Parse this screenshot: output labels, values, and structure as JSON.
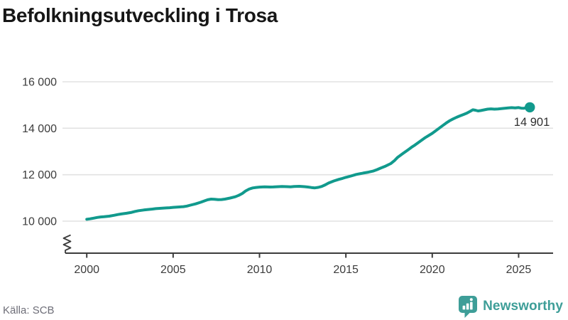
{
  "title": "Befolkningsutveckling i Trosa",
  "source": "Källa: SCB",
  "branding": {
    "name": "Newsworthy",
    "icon": "bar-chart-marker-icon",
    "color": "#3e9e98"
  },
  "colors": {
    "line": "#119a8d",
    "axis": "#3c3c3c",
    "grid": "#e2e2e2",
    "title": "#161616",
    "annotation": "#2f2f2f",
    "source_text": "#6e6e78"
  },
  "chart_data": {
    "type": "line",
    "title": "Befolkningsutveckling i Trosa",
    "xlabel": "",
    "ylabel": "",
    "grid": "horizontal-only",
    "legend": "none",
    "y_axis_broken": true,
    "x_ticks": [
      2000,
      2005,
      2010,
      2015,
      2020,
      2025
    ],
    "x_tick_labels": [
      "2000",
      "2005",
      "2010",
      "2015",
      "2020",
      "2025"
    ],
    "y_ticks": [
      10000,
      12000,
      14000,
      16000
    ],
    "y_tick_labels": [
      "10 000",
      "12 000",
      "14 000",
      "16 000"
    ],
    "xlim": [
      2000,
      2025.65
    ],
    "ylim": [
      10000,
      16000
    ],
    "end_annotation": {
      "label": "14 901",
      "value": 14901
    },
    "series": [
      {
        "name": "Befolkning",
        "color": "#119a8d",
        "points": [
          [
            2000.0,
            10080
          ],
          [
            2000.2,
            10100
          ],
          [
            2000.4,
            10130
          ],
          [
            2000.6,
            10160
          ],
          [
            2000.8,
            10180
          ],
          [
            2001.0,
            10190
          ],
          [
            2001.3,
            10215
          ],
          [
            2001.6,
            10255
          ],
          [
            2001.8,
            10285
          ],
          [
            2002.0,
            10310
          ],
          [
            2002.3,
            10340
          ],
          [
            2002.6,
            10380
          ],
          [
            2002.8,
            10420
          ],
          [
            2003.0,
            10450
          ],
          [
            2003.3,
            10480
          ],
          [
            2003.6,
            10505
          ],
          [
            2003.8,
            10520
          ],
          [
            2004.0,
            10540
          ],
          [
            2004.3,
            10555
          ],
          [
            2004.6,
            10570
          ],
          [
            2004.8,
            10580
          ],
          [
            2005.0,
            10595
          ],
          [
            2005.3,
            10608
          ],
          [
            2005.6,
            10625
          ],
          [
            2005.8,
            10650
          ],
          [
            2006.0,
            10690
          ],
          [
            2006.3,
            10745
          ],
          [
            2006.6,
            10815
          ],
          [
            2006.8,
            10870
          ],
          [
            2007.0,
            10920
          ],
          [
            2007.2,
            10950
          ],
          [
            2007.4,
            10940
          ],
          [
            2007.6,
            10925
          ],
          [
            2007.8,
            10932
          ],
          [
            2008.0,
            10948
          ],
          [
            2008.3,
            10995
          ],
          [
            2008.6,
            11050
          ],
          [
            2008.8,
            11110
          ],
          [
            2009.0,
            11190
          ],
          [
            2009.2,
            11300
          ],
          [
            2009.4,
            11380
          ],
          [
            2009.6,
            11430
          ],
          [
            2009.8,
            11450
          ],
          [
            2010.0,
            11465
          ],
          [
            2010.3,
            11480
          ],
          [
            2010.6,
            11468
          ],
          [
            2010.8,
            11472
          ],
          [
            2011.0,
            11482
          ],
          [
            2011.3,
            11492
          ],
          [
            2011.6,
            11486
          ],
          [
            2011.8,
            11480
          ],
          [
            2012.0,
            11490
          ],
          [
            2012.3,
            11500
          ],
          [
            2012.6,
            11484
          ],
          [
            2012.8,
            11470
          ],
          [
            2013.0,
            11448
          ],
          [
            2013.2,
            11432
          ],
          [
            2013.4,
            11455
          ],
          [
            2013.6,
            11495
          ],
          [
            2013.8,
            11560
          ],
          [
            2014.0,
            11640
          ],
          [
            2014.3,
            11730
          ],
          [
            2014.6,
            11800
          ],
          [
            2014.8,
            11840
          ],
          [
            2015.0,
            11885
          ],
          [
            2015.3,
            11945
          ],
          [
            2015.6,
            12010
          ],
          [
            2015.8,
            12040
          ],
          [
            2016.0,
            12070
          ],
          [
            2016.3,
            12110
          ],
          [
            2016.6,
            12160
          ],
          [
            2016.8,
            12215
          ],
          [
            2017.0,
            12280
          ],
          [
            2017.3,
            12370
          ],
          [
            2017.6,
            12480
          ],
          [
            2017.8,
            12600
          ],
          [
            2018.0,
            12750
          ],
          [
            2018.3,
            12910
          ],
          [
            2018.6,
            13070
          ],
          [
            2018.8,
            13180
          ],
          [
            2019.0,
            13280
          ],
          [
            2019.3,
            13440
          ],
          [
            2019.6,
            13600
          ],
          [
            2019.8,
            13690
          ],
          [
            2020.0,
            13780
          ],
          [
            2020.2,
            13890
          ],
          [
            2020.4,
            14000
          ],
          [
            2020.6,
            14110
          ],
          [
            2020.8,
            14220
          ],
          [
            2021.0,
            14320
          ],
          [
            2021.2,
            14400
          ],
          [
            2021.4,
            14470
          ],
          [
            2021.6,
            14530
          ],
          [
            2021.8,
            14590
          ],
          [
            2022.0,
            14650
          ],
          [
            2022.2,
            14730
          ],
          [
            2022.35,
            14795
          ],
          [
            2022.5,
            14775
          ],
          [
            2022.65,
            14745
          ],
          [
            2022.8,
            14760
          ],
          [
            2023.0,
            14790
          ],
          [
            2023.2,
            14820
          ],
          [
            2023.4,
            14835
          ],
          [
            2023.6,
            14820
          ],
          [
            2023.8,
            14830
          ],
          [
            2024.0,
            14845
          ],
          [
            2024.2,
            14860
          ],
          [
            2024.4,
            14875
          ],
          [
            2024.6,
            14885
          ],
          [
            2024.8,
            14872
          ],
          [
            2025.0,
            14888
          ],
          [
            2025.15,
            14865
          ],
          [
            2025.3,
            14858
          ],
          [
            2025.45,
            14890
          ],
          [
            2025.65,
            14901
          ]
        ]
      }
    ]
  }
}
